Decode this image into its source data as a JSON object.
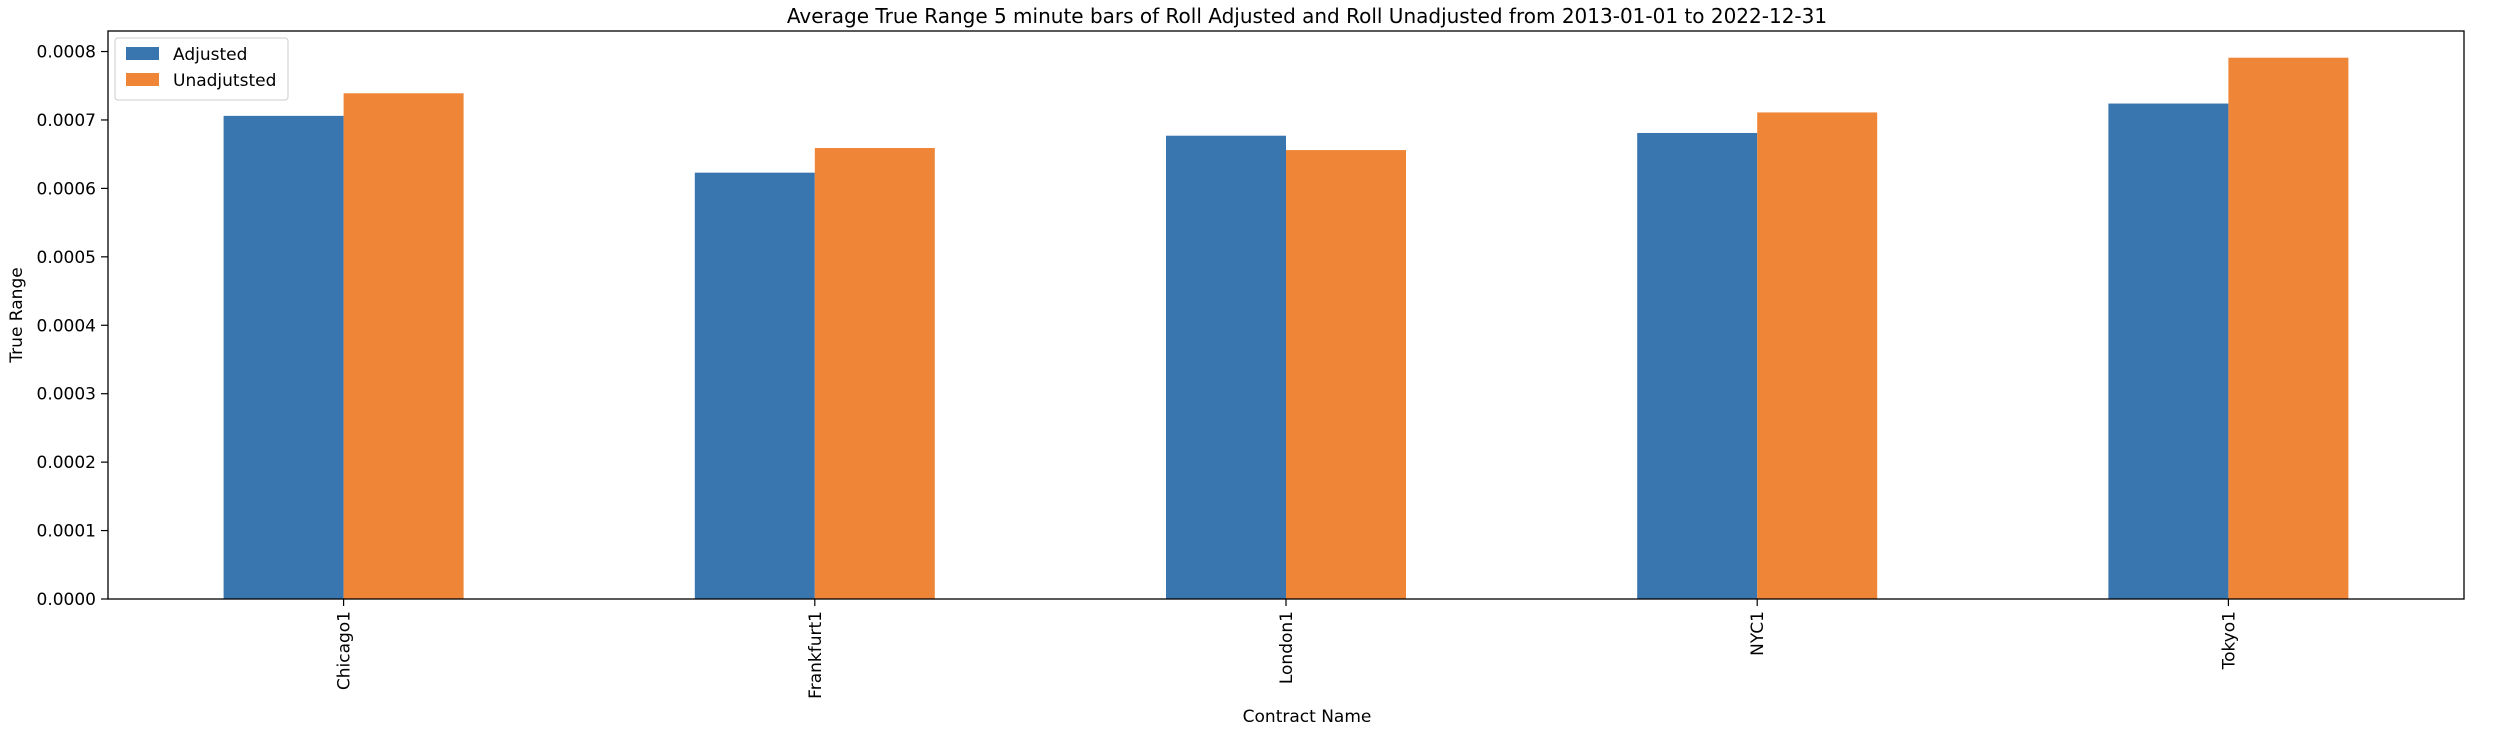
{
  "chart_data": {
    "type": "bar",
    "title": "Average True Range 5 minute bars of Roll Adjusted and Roll Unadjusted from 2013-01-01 to 2022-12-31",
    "xlabel": "Contract Name",
    "ylabel": "True Range",
    "categories": [
      "Chicago1",
      "Frankfurt1",
      "London1",
      "NYC1",
      "Tokyo1"
    ],
    "series": [
      {
        "name": "Adjusted",
        "color": "#3976af",
        "values": [
          0.000706,
          0.000623,
          0.000677,
          0.000681,
          0.000724
        ]
      },
      {
        "name": "Unadjutsted",
        "color": "#ef8536",
        "values": [
          0.000739,
          0.000659,
          0.000656,
          0.000711,
          0.000791
        ]
      }
    ],
    "ylim": [
      0,
      0.00083
    ],
    "yticks": [
      "0.0000",
      "0.0001",
      "0.0002",
      "0.0003",
      "0.0004",
      "0.0005",
      "0.0006",
      "0.0007",
      "0.0008"
    ],
    "ytick_values": [
      0,
      0.0001,
      0.0002,
      0.0003,
      0.0004,
      0.0005,
      0.0006,
      0.0007,
      0.0008
    ],
    "grid": false,
    "legend_position": "top-left"
  }
}
